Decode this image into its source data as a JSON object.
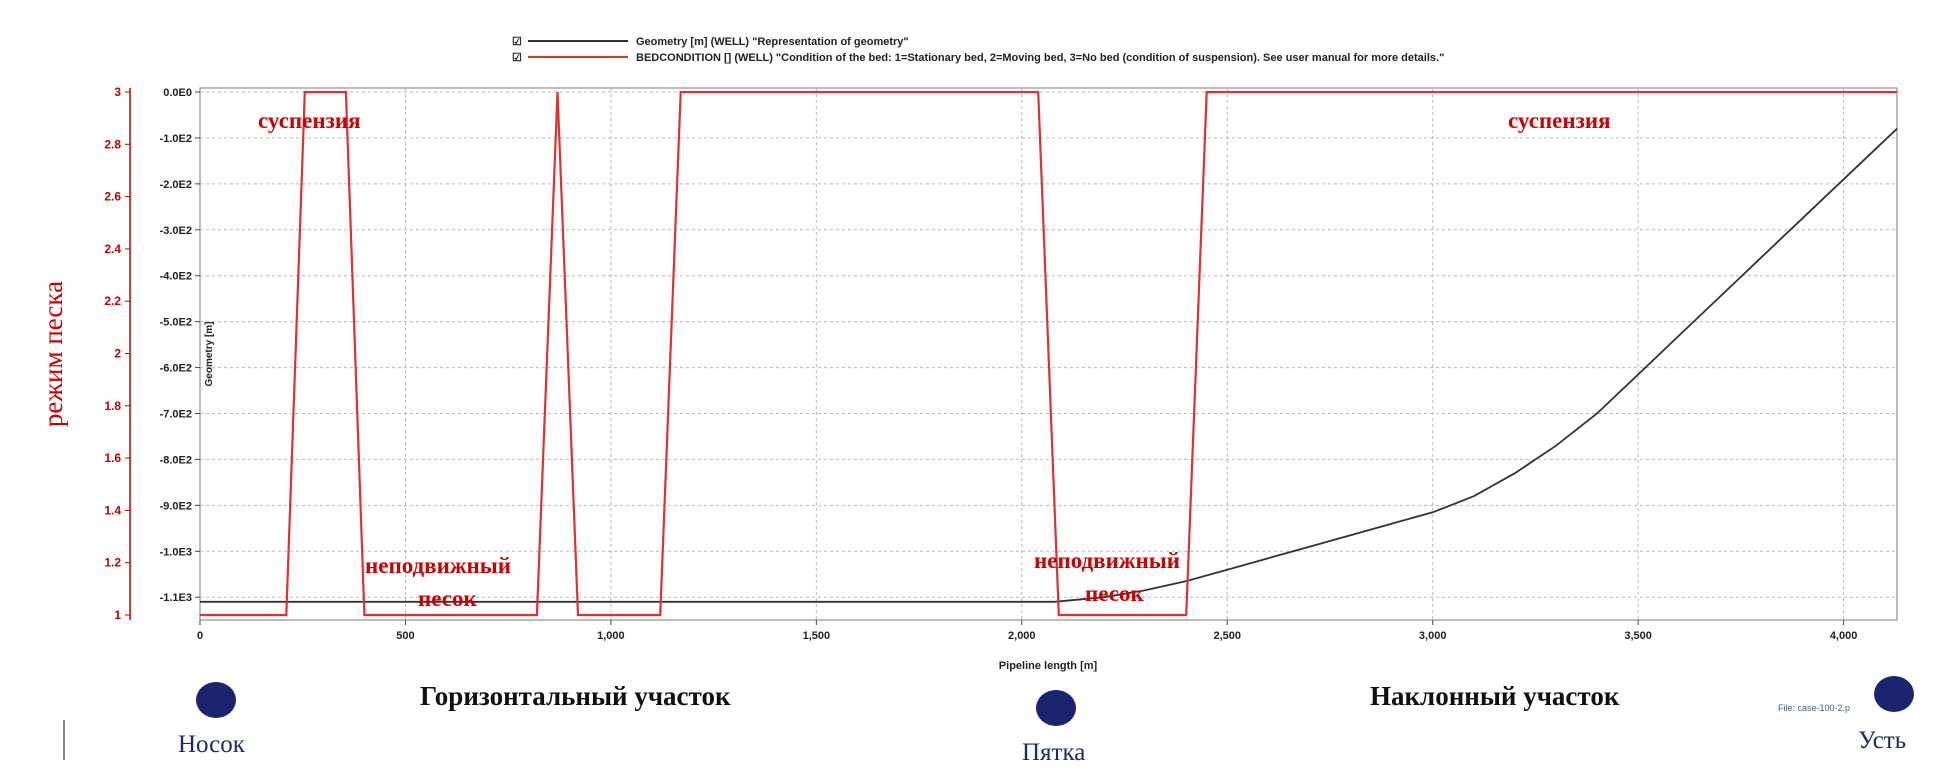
{
  "chart_data": {
    "type": "line",
    "xlabel": "Pipeline length [m]",
    "xlim": [
      0,
      4130
    ],
    "x_ticks": [
      {
        "v": 0,
        "label": "0"
      },
      {
        "v": 500,
        "label": "500"
      },
      {
        "v": 1000,
        "label": "1,000"
      },
      {
        "v": 1500,
        "label": "1,500"
      },
      {
        "v": 2000,
        "label": "2,000"
      },
      {
        "v": 2500,
        "label": "2,500"
      },
      {
        "v": 3000,
        "label": "3,000"
      },
      {
        "v": 3500,
        "label": "3,500"
      },
      {
        "v": 4000,
        "label": "4,000"
      }
    ],
    "y_left": {
      "label": "Geometry [m]",
      "lim": [
        -1130,
        0
      ],
      "ticks": [
        {
          "v": 0,
          "label": "0.0E0"
        },
        {
          "v": -100,
          "label": "-1.0E2"
        },
        {
          "v": -200,
          "label": "-2.0E2"
        },
        {
          "v": -300,
          "label": "-3.0E2"
        },
        {
          "v": -400,
          "label": "-4.0E2"
        },
        {
          "v": -500,
          "label": "-5.0E2"
        },
        {
          "v": -600,
          "label": "-6.0E2"
        },
        {
          "v": -700,
          "label": "-7.0E2"
        },
        {
          "v": -800,
          "label": "-8.0E2"
        },
        {
          "v": -900,
          "label": "-9.0E2"
        },
        {
          "v": -1000,
          "label": "-1.0E3"
        },
        {
          "v": -1100,
          "label": "-1.1E3"
        }
      ]
    },
    "y_right_red": {
      "label": "режим песка",
      "lim": [
        1,
        3
      ],
      "ticks": [
        {
          "v": 3,
          "label": "3"
        },
        {
          "v": 2.8,
          "label": "2.8"
        },
        {
          "v": 2.6,
          "label": "2.6"
        },
        {
          "v": 2.4,
          "label": "2.4"
        },
        {
          "v": 2.2,
          "label": "2.2"
        },
        {
          "v": 2,
          "label": "2"
        },
        {
          "v": 1.8,
          "label": "1.8"
        },
        {
          "v": 1.6,
          "label": "1.6"
        },
        {
          "v": 1.4,
          "label": "1.4"
        },
        {
          "v": 1.2,
          "label": "1.2"
        },
        {
          "v": 1,
          "label": "1"
        }
      ]
    },
    "grid": true,
    "legend_position": "top-center",
    "series": [
      {
        "name": "Geometry [m] (WELL) \"Representation of geometry\"",
        "color": "#333333",
        "axis": "left",
        "x": [
          0,
          500,
          1000,
          1500,
          2000,
          2080,
          2200,
          2300,
          2400,
          2500,
          2600,
          2700,
          2800,
          2900,
          3000,
          3100,
          3200,
          3300,
          3400,
          3500,
          3600,
          3700,
          3800,
          3900,
          4000,
          4130
        ],
        "y": [
          -1110,
          -1110,
          -1110,
          -1110,
          -1110,
          -1110,
          -1100,
          -1085,
          -1065,
          -1040,
          -1015,
          -990,
          -965,
          -940,
          -915,
          -880,
          -830,
          -770,
          -700,
          -615,
          -530,
          -445,
          -360,
          -275,
          -190,
          -80
        ]
      },
      {
        "name": "BEDCONDITION [] (WELL) \"Condition of the bed: 1=Stationary bed, 2=Moving bed, 3=No bed (condition of suspension). See user manual for more details.\"",
        "color": "#e03030",
        "axis": "right",
        "x": [
          0,
          210,
          255,
          355,
          400,
          820,
          870,
          920,
          1120,
          1170,
          2040,
          2090,
          2400,
          2450,
          4130
        ],
        "y": [
          1,
          1,
          3,
          3,
          1,
          1,
          3,
          1,
          1,
          3,
          3,
          1,
          1,
          3,
          3
        ]
      }
    ],
    "annotations": {
      "suspension_left": "суспензия",
      "suspension_right": "суспензия",
      "stationary_left_1": "неподвижный",
      "stationary_left_2": "песок",
      "stationary_right_1": "неподвижный",
      "stationary_right_2": "песок"
    },
    "sections": {
      "horizontal": "Горизонтальный участок",
      "inclined": "Наклонный участок"
    },
    "markers": {
      "toe": "Носок",
      "heel": "Пятка",
      "wellhead": "Усть"
    },
    "file_label": "File: case-100-2.p"
  },
  "colors": {
    "red": "#e03030",
    "geometry": "#333333",
    "marker": "#1c2470"
  }
}
